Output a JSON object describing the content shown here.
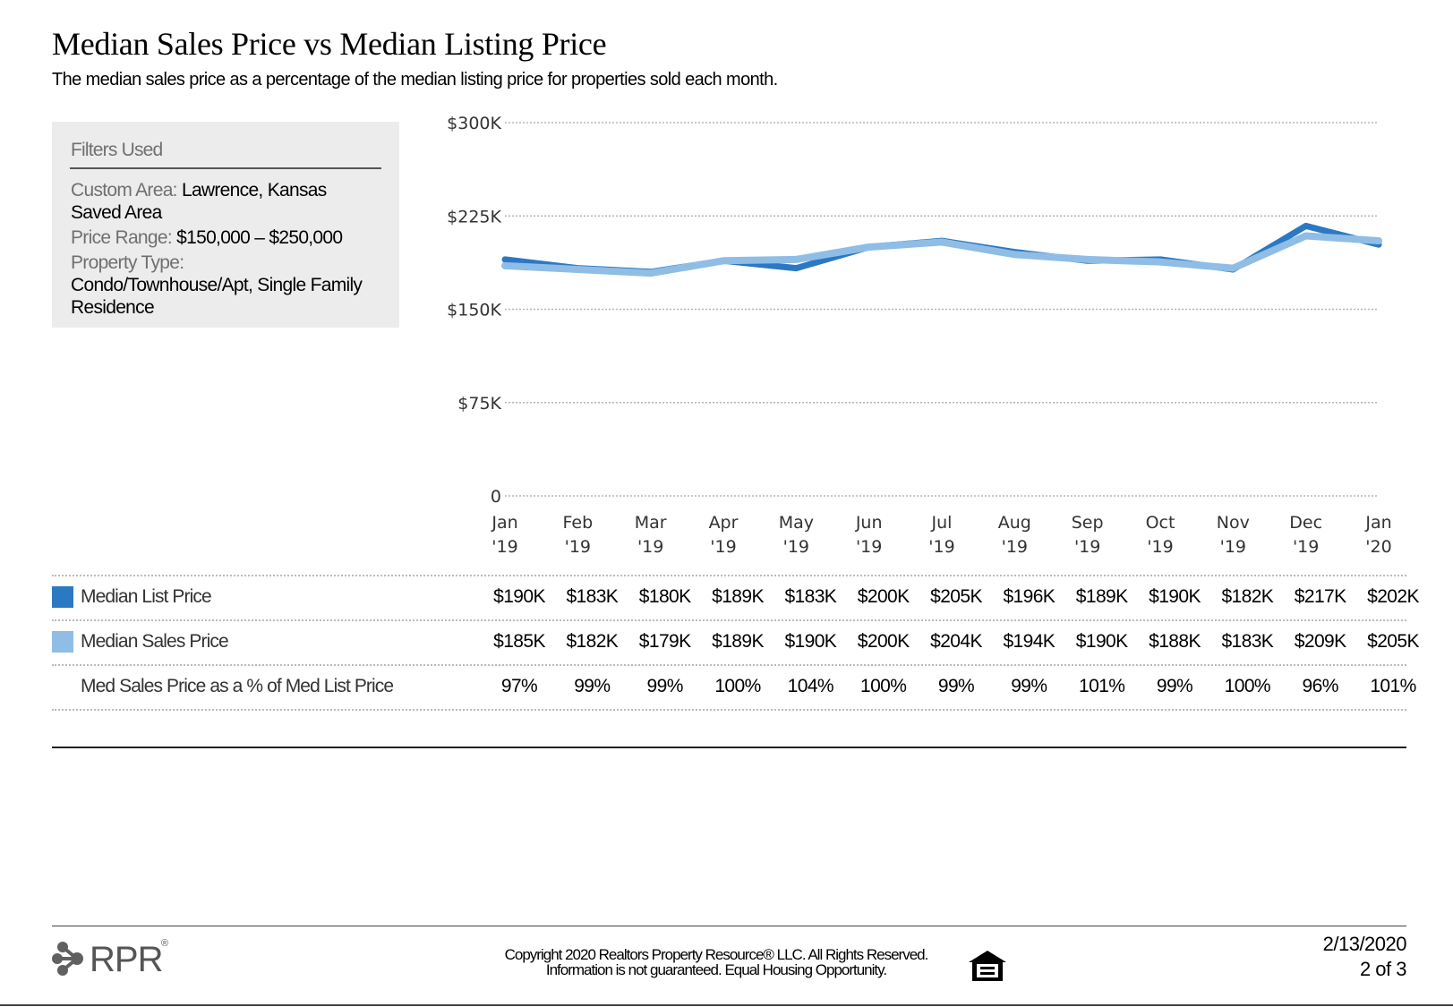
{
  "header": {
    "title": "Median Sales Price vs Median Listing Price",
    "subtitle": "The median sales price as a percentage of the median listing price for properties sold each month."
  },
  "filters": {
    "heading": "Filters Used",
    "custom_area_label": "Custom Area:",
    "custom_area_value": "Lawrence, Kansas",
    "custom_area_value2": "Saved Area",
    "price_range_label": "Price Range:",
    "price_range_value": "$150,000 – $250,000",
    "property_type_label": "Property Type:",
    "property_type_value": "Condo/Townhouse/Apt, Single Family Residence"
  },
  "chart_data": {
    "type": "line",
    "categories": [
      [
        "Jan",
        "'19"
      ],
      [
        "Feb",
        "'19"
      ],
      [
        "Mar",
        "'19"
      ],
      [
        "Apr",
        "'19"
      ],
      [
        "May",
        "'19"
      ],
      [
        "Jun",
        "'19"
      ],
      [
        "Jul",
        "'19"
      ],
      [
        "Aug",
        "'19"
      ],
      [
        "Sep",
        "'19"
      ],
      [
        "Oct",
        "'19"
      ],
      [
        "Nov",
        "'19"
      ],
      [
        "Dec",
        "'19"
      ],
      [
        "Jan",
        "'20"
      ]
    ],
    "ylim": [
      0,
      300000
    ],
    "yticks": [
      0,
      75000,
      150000,
      225000,
      300000
    ],
    "yticklabels": [
      "0",
      "$75K",
      "$150K",
      "$225K",
      "$300K"
    ],
    "grid": true,
    "series": [
      {
        "name": "Median List Price",
        "color": "#2b79c2",
        "values": [
          190000,
          183000,
          180000,
          189000,
          183000,
          200000,
          205000,
          196000,
          189000,
          190000,
          182000,
          217000,
          202000
        ],
        "labels": [
          "$190K",
          "$183K",
          "$180K",
          "$189K",
          "$183K",
          "$200K",
          "$205K",
          "$196K",
          "$189K",
          "$190K",
          "$182K",
          "$217K",
          "$202K"
        ]
      },
      {
        "name": "Median Sales Price",
        "color": "#8fbde5",
        "values": [
          185000,
          182000,
          179000,
          189000,
          190000,
          200000,
          204000,
          194000,
          190000,
          188000,
          183000,
          209000,
          205000
        ],
        "labels": [
          "$185K",
          "$182K",
          "$179K",
          "$189K",
          "$190K",
          "$200K",
          "$204K",
          "$194K",
          "$190K",
          "$188K",
          "$183K",
          "$209K",
          "$205K"
        ]
      }
    ],
    "ratio": {
      "name": "Med Sales Price as a % of Med List Price",
      "labels": [
        "97%",
        "99%",
        "99%",
        "100%",
        "104%",
        "100%",
        "99%",
        "99%",
        "101%",
        "99%",
        "100%",
        "96%",
        "101%"
      ]
    }
  },
  "footer": {
    "logo_text": "RPR",
    "logo_reg": "®",
    "copyright_line1": "Copyright 2020 Realtors Property Resource® LLC. All Rights Reserved.",
    "copyright_line2": "Information is not guaranteed. Equal Housing Opportunity.",
    "date": "2/13/2020",
    "page": "2 of 3"
  }
}
